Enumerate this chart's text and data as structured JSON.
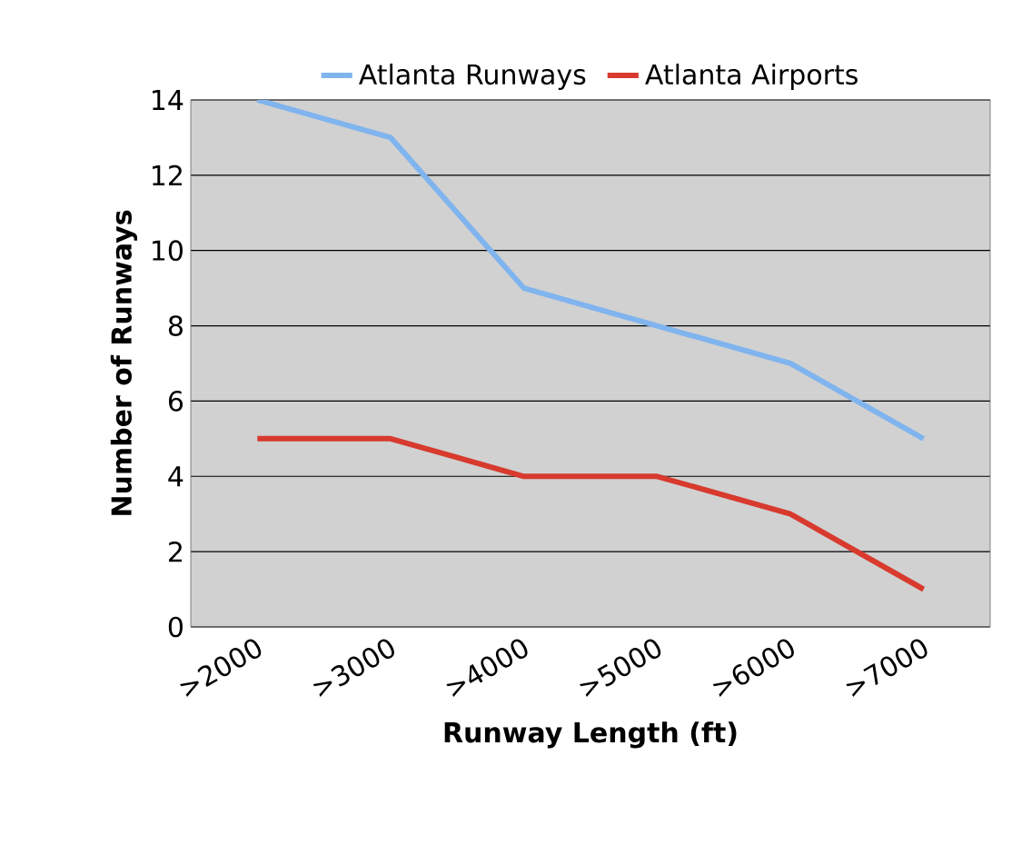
{
  "chart_data": {
    "type": "line",
    "xlabel": "Runway Length (ft)",
    "ylabel": "Number of Runways",
    "categories": [
      ">2000",
      ">3000",
      ">4000",
      ">5000",
      ">6000",
      ">7000"
    ],
    "series": [
      {
        "name": "Atlanta Runways",
        "color": "#80b4ee",
        "values": [
          14,
          13,
          9,
          8,
          7,
          5
        ]
      },
      {
        "name": "Atlanta Airports",
        "color": "#d83a2e",
        "values": [
          5,
          5,
          4,
          4,
          3,
          1
        ]
      }
    ],
    "ylim": [
      0,
      14
    ],
    "yticks": [
      0,
      2,
      4,
      6,
      8,
      10,
      12,
      14
    ],
    "grid": "y",
    "legend": "top"
  }
}
